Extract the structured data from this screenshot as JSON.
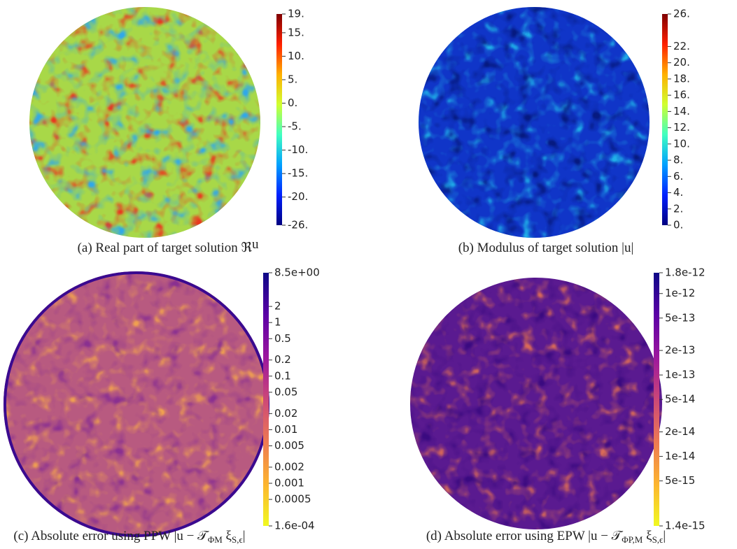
{
  "chart_data": [
    {
      "type": "colormap-disc",
      "caption": [
        "(a) Real part of target solution ℜ",
        "",
        "u"
      ],
      "ylim": [
        -26,
        19
      ],
      "log": false,
      "yticks": [
        {
          "value": 19,
          "label": "19."
        },
        {
          "value": 15,
          "label": "15."
        },
        {
          "value": 10,
          "label": "10."
        },
        {
          "value": 5,
          "label": "5."
        },
        {
          "value": 0,
          "label": "0."
        },
        {
          "value": -5,
          "label": "-5."
        },
        {
          "value": -10,
          "label": "-10."
        },
        {
          "value": -15,
          "label": "-15."
        },
        {
          "value": -20,
          "label": "-20."
        },
        {
          "value": -26,
          "label": "-26."
        }
      ],
      "colormap": [
        "#800000",
        "#ff2000",
        "#ffb000",
        "#d0ff30",
        "#40ffc0",
        "#00a0ff",
        "#0020ff",
        "#000080"
      ],
      "disc_colors": [
        "#a8d848",
        "#e83a20",
        "#30a8e8"
      ]
    },
    {
      "type": "colormap-disc",
      "caption": [
        "(b) Modulus of target solution |u|"
      ],
      "ylim": [
        0,
        26
      ],
      "log": false,
      "yticks": [
        {
          "value": 26,
          "label": "26."
        },
        {
          "value": 22,
          "label": "22."
        },
        {
          "value": 20,
          "label": "20."
        },
        {
          "value": 18,
          "label": "18."
        },
        {
          "value": 16,
          "label": "16."
        },
        {
          "value": 14,
          "label": "14."
        },
        {
          "value": 12,
          "label": "12."
        },
        {
          "value": 10,
          "label": "10."
        },
        {
          "value": 8,
          "label": "8."
        },
        {
          "value": 6,
          "label": "6."
        },
        {
          "value": 4,
          "label": "4."
        },
        {
          "value": 2,
          "label": "2."
        },
        {
          "value": 0,
          "label": "0."
        }
      ],
      "colormap": [
        "#800000",
        "#ff2000",
        "#ffb000",
        "#d0ff30",
        "#40ffc0",
        "#00a0ff",
        "#0020ff",
        "#000080"
      ],
      "disc_colors": [
        "#1035c8",
        "#20b0e8",
        "#061a80"
      ]
    },
    {
      "type": "colormap-disc",
      "caption": [
        "(c) Absolute error using PPW |u − 𝒯",
        "ΦM",
        " ξ",
        "S,ϵ",
        "|"
      ],
      "ylim": [
        0.00016,
        8.5
      ],
      "log": true,
      "yticks": [
        {
          "value": 8.5,
          "label": "8.5e+00"
        },
        2,
        1,
        0.5,
        0.2,
        0.1,
        0.05,
        0.02,
        0.01,
        0.005,
        0.002,
        0.001,
        0.0005,
        {
          "value": 0.00016,
          "label": "1.6e-04"
        }
      ],
      "colormap": [
        "#0d0887",
        "#5c01a6",
        "#9c179e",
        "#cc4778",
        "#ed7953",
        "#fdb42f",
        "#f0f921"
      ],
      "disc_colors": [
        "#b85a80",
        "#f0a050",
        "#8a3090"
      ],
      "edge_color": "#3a0a90"
    },
    {
      "type": "colormap-disc",
      "caption": [
        "(d) Absolute error using EPW |u − 𝒯",
        "ΦP,M",
        " ξ",
        "S,ϵ",
        "|"
      ],
      "ylim": [
        1.4e-15,
        1.8e-12
      ],
      "log": true,
      "yticks": [
        1.8e-12,
        1e-12,
        5e-13,
        2e-13,
        1e-13,
        5e-14,
        2e-14,
        1e-14,
        5e-15,
        1.4e-15
      ],
      "colormap": [
        "#0d0887",
        "#5c01a6",
        "#9c179e",
        "#cc4778",
        "#ed7953",
        "#fdb42f",
        "#f0f921"
      ],
      "disc_colors": [
        "#5a1a90",
        "#d86a58",
        "#3a0a80"
      ]
    }
  ]
}
